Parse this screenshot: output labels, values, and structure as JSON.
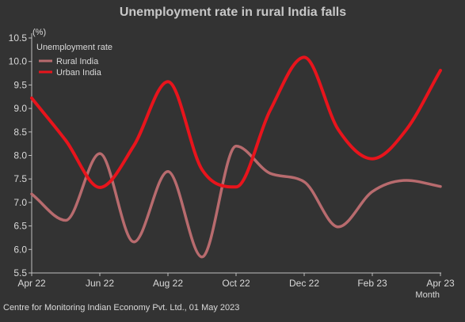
{
  "colors": {
    "background": "#333333",
    "axis": "#bfbfbf",
    "rural": "#b86b6e",
    "urban": "#e8141c"
  },
  "chart_data": {
    "type": "line",
    "title": "Unemployment rate in rural India falls",
    "ylabel": "(%)",
    "xlabel": "Month",
    "ylim": [
      5.5,
      10.5
    ],
    "yticks": [
      "5.5",
      "6.0",
      "6.5",
      "7.0",
      "7.5",
      "8.0",
      "8.5",
      "9.0",
      "9.5",
      "10.0",
      "10.5"
    ],
    "categories": [
      "Apr 22",
      "May 22",
      "Jun 22",
      "Jul 22",
      "Aug 22",
      "Sep 22",
      "Oct 22",
      "Nov 22",
      "Dec 22",
      "Jan 23",
      "Feb 23",
      "Mar 23",
      "Apr 23"
    ],
    "xtick_labels": [
      "Apr 22",
      "Jun 22",
      "Aug 22",
      "Oct 22",
      "Dec 22",
      "Feb 23",
      "Apr 23"
    ],
    "legend_title": "Unemployment rate",
    "legend_position": "top-left",
    "grid": false,
    "series": [
      {
        "name": "Rural India",
        "color": "#b86b6e",
        "values": [
          7.18,
          6.62,
          8.04,
          6.16,
          7.66,
          5.84,
          8.2,
          7.62,
          7.44,
          6.48,
          7.23,
          7.47,
          7.34
        ]
      },
      {
        "name": "Urban India",
        "color": "#e8141c",
        "values": [
          9.22,
          8.32,
          7.32,
          8.21,
          9.57,
          7.7,
          7.33,
          8.96,
          10.09,
          8.55,
          7.93,
          8.55,
          9.81
        ]
      }
    ]
  },
  "footer": {
    "source": "Centre for Monitoring Indian Economy Pvt. Ltd., 01 May 2023"
  }
}
